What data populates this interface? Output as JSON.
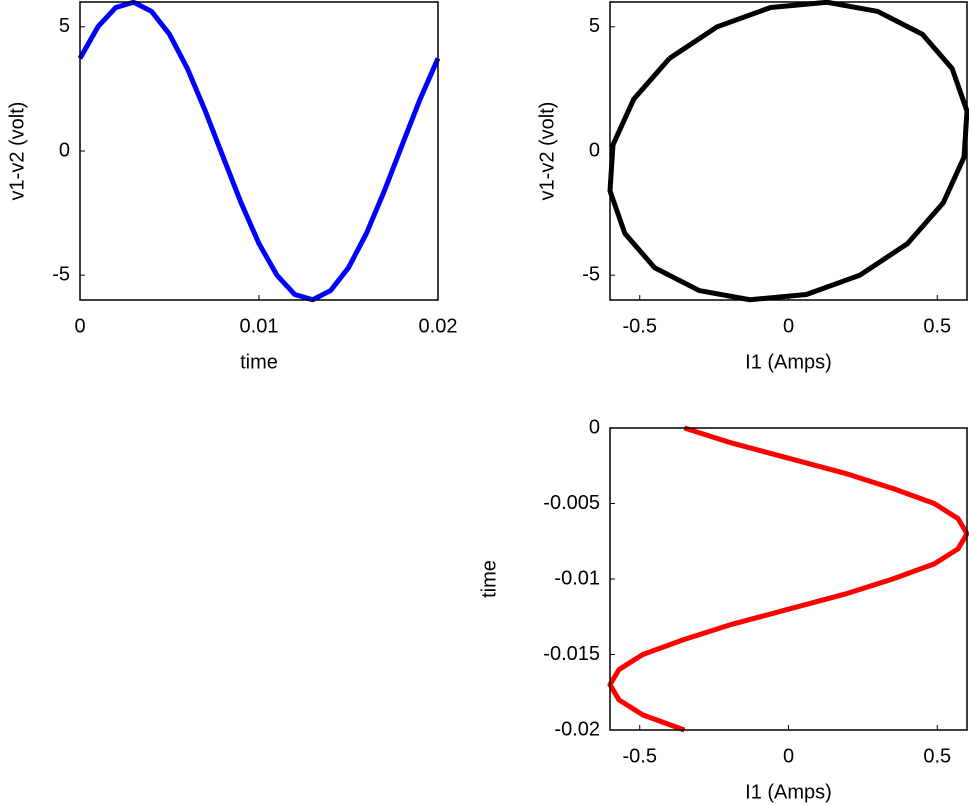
{
  "chart_data": [
    {
      "type": "line",
      "x_label": "time",
      "y_label": "v1-v2 (volt)",
      "x": [
        0,
        0.001,
        0.002,
        0.003,
        0.004,
        0.005,
        0.006,
        0.007,
        0.008,
        0.009,
        0.01,
        0.011,
        0.012,
        0.013,
        0.014,
        0.015,
        0.016,
        0.017,
        0.018,
        0.019,
        0.02
      ],
      "values": [
        3.73,
        5.0,
        5.78,
        5.99,
        5.62,
        4.7,
        3.32,
        1.61,
        -0.25,
        -2.09,
        -3.73,
        -5.0,
        -5.78,
        -5.99,
        -5.62,
        -4.7,
        -3.32,
        -1.61,
        0.25,
        2.09,
        3.73
      ],
      "color": "#0000ff",
      "xlim": [
        0,
        0.02
      ],
      "xticks": [
        0,
        0.01,
        0.02
      ],
      "ylim": [
        -6,
        6
      ],
      "yticks": [
        -5,
        0,
        5
      ]
    },
    {
      "type": "line",
      "x_label": "I1 (Amps)",
      "y_label": "v1-v2 (volt)",
      "x": [
        -0.4,
        -0.24,
        -0.06,
        0.13,
        0.3,
        0.45,
        0.55,
        0.6,
        0.59,
        0.52,
        0.4,
        0.24,
        0.06,
        -0.13,
        -0.3,
        -0.45,
        -0.55,
        -0.6,
        -0.59,
        -0.52,
        -0.4
      ],
      "values": [
        3.73,
        5.0,
        5.78,
        5.99,
        5.62,
        4.7,
        3.32,
        1.61,
        -0.25,
        -2.09,
        -3.73,
        -5.0,
        -5.78,
        -5.99,
        -5.62,
        -4.7,
        -3.32,
        -1.61,
        0.25,
        2.09,
        3.73
      ],
      "color": "#000000",
      "xlim": [
        -0.6,
        0.6
      ],
      "xticks": [
        -0.5,
        0,
        0.5
      ],
      "ylim": [
        -6,
        6
      ],
      "yticks": [
        -5,
        0,
        5
      ]
    },
    {
      "type": "line",
      "x_label": "I1 (Amps)",
      "y_label": "time",
      "x": [
        -0.35,
        -0.19,
        0,
        0.19,
        0.35,
        0.49,
        0.57,
        0.6,
        0.57,
        0.49,
        0.35,
        0.19,
        0,
        -0.19,
        -0.35,
        -0.49,
        -0.57,
        -0.6,
        -0.57,
        -0.49,
        -0.35
      ],
      "values": [
        0,
        -0.001,
        -0.002,
        -0.003,
        -0.004,
        -0.005,
        -0.006,
        -0.007,
        -0.008,
        -0.009,
        -0.01,
        -0.011,
        -0.012,
        -0.013,
        -0.014,
        -0.015,
        -0.016,
        -0.017,
        -0.018,
        -0.019,
        -0.02
      ],
      "color": "#ff0000",
      "xlim": [
        -0.6,
        0.6
      ],
      "xticks": [
        -0.5,
        0,
        0.5
      ],
      "ylim": [
        -0.02,
        0
      ],
      "yticks": [
        0,
        -0.005,
        -0.01,
        -0.015,
        -0.02
      ]
    }
  ]
}
